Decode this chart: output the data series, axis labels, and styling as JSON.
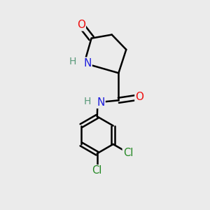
{
  "background_color": "#ebebeb",
  "atom_colors": {
    "C": "#000000",
    "N": "#2020dd",
    "O": "#ee1111",
    "Cl": "#228822",
    "H": "#5a9a7a"
  },
  "bond_color": "#000000",
  "bond_width": 1.8,
  "figsize": [
    3.0,
    3.0
  ],
  "dpi": 100
}
